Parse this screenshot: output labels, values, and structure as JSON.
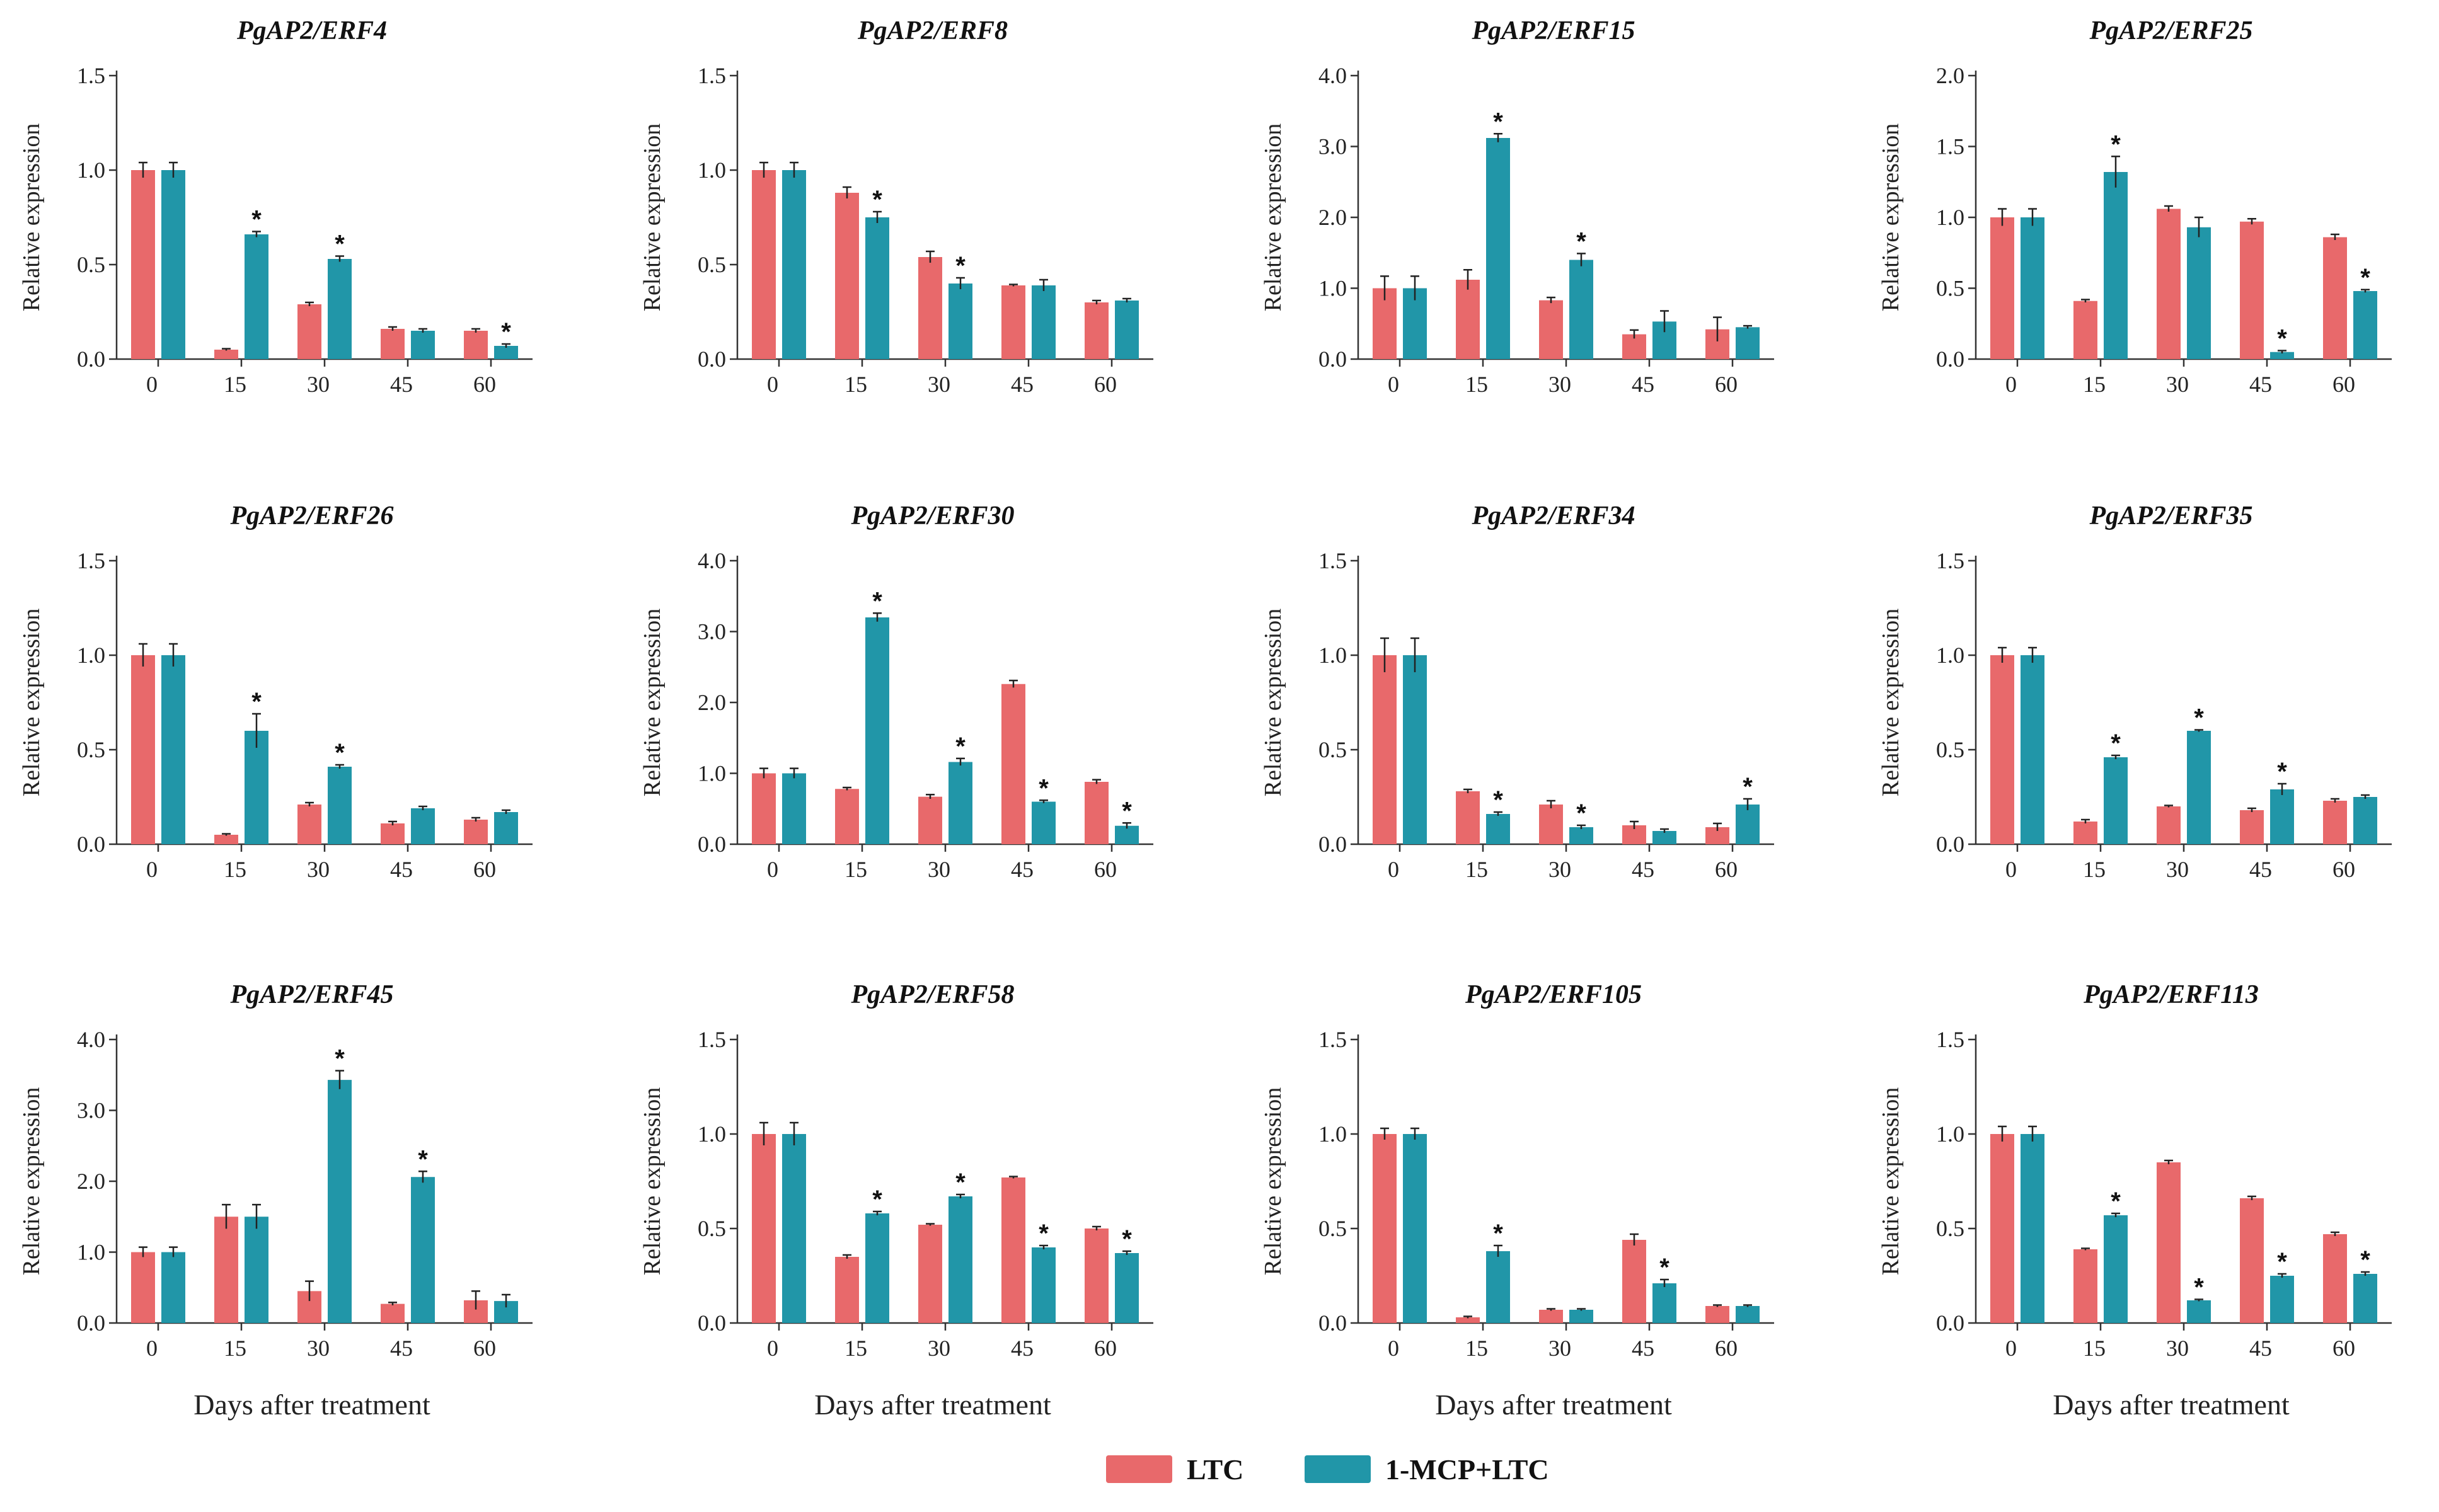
{
  "colors": {
    "ltc": "#E8696B",
    "mcp": "#2196A8",
    "axis": "#333333",
    "error": "#222222"
  },
  "legend": {
    "items": [
      {
        "label": "LTC",
        "color": "#E8696B"
      },
      {
        "label": "1-MCP+LTC",
        "color": "#2196A8"
      }
    ]
  },
  "x_axis_label": "Days after treatment",
  "y_axis_label": "Relative expression",
  "chart_data": [
    {
      "type": "bar",
      "title": "PgAP2/ERF4",
      "categories": [
        "0",
        "15",
        "30",
        "45",
        "60"
      ],
      "ylim": [
        0,
        1.5
      ],
      "yticks": [
        "0.0",
        "0.5",
        "1.0",
        "1.5"
      ],
      "xlabel": "",
      "ylabel": "Relative expression",
      "series": [
        {
          "name": "LTC",
          "values": [
            1.0,
            0.05,
            0.29,
            0.16,
            0.15
          ],
          "errors": [
            0.04,
            0.005,
            0.01,
            0.01,
            0.01
          ]
        },
        {
          "name": "1-MCP+LTC",
          "values": [
            1.0,
            0.66,
            0.53,
            0.15,
            0.07
          ],
          "errors": [
            0.04,
            0.015,
            0.015,
            0.01,
            0.01
          ]
        }
      ],
      "significant": [
        1,
        2,
        4
      ]
    },
    {
      "type": "bar",
      "title": "PgAP2/ERF8",
      "categories": [
        "0",
        "15",
        "30",
        "45",
        "60"
      ],
      "ylim": [
        0,
        1.5
      ],
      "yticks": [
        "0.0",
        "0.5",
        "1.0",
        "1.5"
      ],
      "xlabel": "",
      "ylabel": "Relative expression",
      "series": [
        {
          "name": "LTC",
          "values": [
            1.0,
            0.88,
            0.54,
            0.39,
            0.3
          ],
          "errors": [
            0.04,
            0.03,
            0.03,
            0.005,
            0.01
          ]
        },
        {
          "name": "1-MCP+LTC",
          "values": [
            1.0,
            0.75,
            0.4,
            0.39,
            0.31
          ],
          "errors": [
            0.04,
            0.03,
            0.03,
            0.03,
            0.01
          ]
        }
      ],
      "significant": [
        1,
        2
      ]
    },
    {
      "type": "bar",
      "title": "PgAP2/ERF15",
      "categories": [
        "0",
        "15",
        "30",
        "45",
        "60"
      ],
      "ylim": [
        0,
        4.0
      ],
      "yticks": [
        "0.0",
        "1.0",
        "2.0",
        "3.0",
        "4.0"
      ],
      "xlabel": "",
      "ylabel": "Relative expression",
      "series": [
        {
          "name": "LTC",
          "values": [
            1.0,
            1.12,
            0.83,
            0.35,
            0.42
          ],
          "errors": [
            0.17,
            0.14,
            0.04,
            0.06,
            0.17
          ]
        },
        {
          "name": "1-MCP+LTC",
          "values": [
            1.0,
            3.12,
            1.4,
            0.53,
            0.45
          ],
          "errors": [
            0.17,
            0.06,
            0.09,
            0.15,
            0.02
          ]
        }
      ],
      "significant": [
        1,
        2
      ]
    },
    {
      "type": "bar",
      "title": "PgAP2/ERF25",
      "categories": [
        "0",
        "15",
        "30",
        "45",
        "60"
      ],
      "ylim": [
        0,
        2.0
      ],
      "yticks": [
        "0.0",
        "0.5",
        "1.0",
        "1.5",
        "2.0"
      ],
      "xlabel": "",
      "ylabel": "Relative expression",
      "series": [
        {
          "name": "LTC",
          "values": [
            1.0,
            0.41,
            1.06,
            0.97,
            0.86
          ],
          "errors": [
            0.06,
            0.01,
            0.02,
            0.02,
            0.02
          ]
        },
        {
          "name": "1-MCP+LTC",
          "values": [
            1.0,
            1.32,
            0.93,
            0.05,
            0.48
          ],
          "errors": [
            0.06,
            0.11,
            0.07,
            0.01,
            0.01
          ]
        }
      ],
      "significant": [
        1,
        3,
        4
      ]
    },
    {
      "type": "bar",
      "title": "PgAP2/ERF26",
      "categories": [
        "0",
        "15",
        "30",
        "45",
        "60"
      ],
      "ylim": [
        0,
        1.5
      ],
      "yticks": [
        "0.0",
        "0.5",
        "1.0",
        "1.5"
      ],
      "xlabel": "",
      "ylabel": "Relative expression",
      "series": [
        {
          "name": "LTC",
          "values": [
            1.0,
            0.05,
            0.21,
            0.11,
            0.13
          ],
          "errors": [
            0.06,
            0.005,
            0.01,
            0.01,
            0.01
          ]
        },
        {
          "name": "1-MCP+LTC",
          "values": [
            1.0,
            0.6,
            0.41,
            0.19,
            0.17
          ],
          "errors": [
            0.06,
            0.09,
            0.01,
            0.01,
            0.01
          ]
        }
      ],
      "significant": [
        1,
        2
      ]
    },
    {
      "type": "bar",
      "title": "PgAP2/ERF30",
      "categories": [
        "0",
        "15",
        "30",
        "45",
        "60"
      ],
      "ylim": [
        0,
        4.0
      ],
      "yticks": [
        "0.0",
        "1.0",
        "2.0",
        "3.0",
        "4.0"
      ],
      "xlabel": "",
      "ylabel": "Relative expression",
      "series": [
        {
          "name": "LTC",
          "values": [
            1.0,
            0.78,
            0.67,
            2.26,
            0.88
          ],
          "errors": [
            0.07,
            0.02,
            0.03,
            0.05,
            0.03
          ]
        },
        {
          "name": "1-MCP+LTC",
          "values": [
            1.0,
            3.2,
            1.16,
            0.6,
            0.26
          ],
          "errors": [
            0.07,
            0.06,
            0.05,
            0.02,
            0.04
          ]
        }
      ],
      "significant": [
        1,
        2,
        3,
        4
      ]
    },
    {
      "type": "bar",
      "title": "PgAP2/ERF34",
      "categories": [
        "0",
        "15",
        "30",
        "45",
        "60"
      ],
      "ylim": [
        0,
        1.5
      ],
      "yticks": [
        "0.0",
        "0.5",
        "1.0",
        "1.5"
      ],
      "xlabel": "",
      "ylabel": "Relative expression",
      "series": [
        {
          "name": "LTC",
          "values": [
            1.0,
            0.28,
            0.21,
            0.1,
            0.09
          ],
          "errors": [
            0.09,
            0.01,
            0.02,
            0.02,
            0.02
          ]
        },
        {
          "name": "1-MCP+LTC",
          "values": [
            1.0,
            0.16,
            0.09,
            0.07,
            0.21
          ],
          "errors": [
            0.09,
            0.01,
            0.01,
            0.01,
            0.03
          ]
        }
      ],
      "significant": [
        1,
        2,
        4
      ]
    },
    {
      "type": "bar",
      "title": "PgAP2/ERF35",
      "categories": [
        "0",
        "15",
        "30",
        "45",
        "60"
      ],
      "ylim": [
        0,
        1.5
      ],
      "yticks": [
        "0.0",
        "0.5",
        "1.0",
        "1.5"
      ],
      "xlabel": "",
      "ylabel": "Relative expression",
      "series": [
        {
          "name": "LTC",
          "values": [
            1.0,
            0.12,
            0.2,
            0.18,
            0.23
          ],
          "errors": [
            0.04,
            0.01,
            0.005,
            0.01,
            0.01
          ]
        },
        {
          "name": "1-MCP+LTC",
          "values": [
            1.0,
            0.46,
            0.6,
            0.29,
            0.25
          ],
          "errors": [
            0.04,
            0.01,
            0.005,
            0.03,
            0.01
          ]
        }
      ],
      "significant": [
        1,
        2,
        3
      ]
    },
    {
      "type": "bar",
      "title": "PgAP2/ERF45",
      "categories": [
        "0",
        "15",
        "30",
        "45",
        "60"
      ],
      "ylim": [
        0,
        4.0
      ],
      "yticks": [
        "0.0",
        "1.0",
        "2.0",
        "3.0",
        "4.0"
      ],
      "xlabel": "",
      "ylabel": "Relative expression",
      "series": [
        {
          "name": "LTC",
          "values": [
            1.0,
            1.5,
            0.45,
            0.27,
            0.32
          ],
          "errors": [
            0.07,
            0.17,
            0.14,
            0.02,
            0.13
          ]
        },
        {
          "name": "1-MCP+LTC",
          "values": [
            1.0,
            1.5,
            3.43,
            2.06,
            0.31
          ],
          "errors": [
            0.07,
            0.17,
            0.13,
            0.08,
            0.09
          ]
        }
      ],
      "significant": [
        2,
        3
      ]
    },
    {
      "type": "bar",
      "title": "PgAP2/ERF58",
      "categories": [
        "0",
        "15",
        "30",
        "45",
        "60"
      ],
      "ylim": [
        0,
        1.5
      ],
      "yticks": [
        "0.0",
        "0.5",
        "1.0",
        "1.5"
      ],
      "xlabel": "",
      "ylabel": "Relative expression",
      "series": [
        {
          "name": "LTC",
          "values": [
            1.0,
            0.35,
            0.52,
            0.77,
            0.5
          ],
          "errors": [
            0.06,
            0.01,
            0.005,
            0.005,
            0.01
          ]
        },
        {
          "name": "1-MCP+LTC",
          "values": [
            1.0,
            0.58,
            0.67,
            0.4,
            0.37
          ],
          "errors": [
            0.06,
            0.01,
            0.01,
            0.01,
            0.01
          ]
        }
      ],
      "significant": [
        1,
        2,
        3,
        4
      ]
    },
    {
      "type": "bar",
      "title": "PgAP2/ERF105",
      "categories": [
        "0",
        "15",
        "30",
        "45",
        "60"
      ],
      "ylim": [
        0,
        1.5
      ],
      "yticks": [
        "0.0",
        "0.5",
        "1.0",
        "1.5"
      ],
      "xlabel": "",
      "ylabel": "Relative expression",
      "series": [
        {
          "name": "LTC",
          "values": [
            1.0,
            0.03,
            0.07,
            0.44,
            0.09
          ],
          "errors": [
            0.03,
            0.005,
            0.005,
            0.03,
            0.005
          ]
        },
        {
          "name": "1-MCP+LTC",
          "values": [
            1.0,
            0.38,
            0.07,
            0.21,
            0.09
          ],
          "errors": [
            0.03,
            0.03,
            0.005,
            0.02,
            0.005
          ]
        }
      ],
      "significant": [
        1,
        3
      ]
    },
    {
      "type": "bar",
      "title": "PgAP2/ERF113",
      "categories": [
        "0",
        "15",
        "30",
        "45",
        "60"
      ],
      "ylim": [
        0,
        1.5
      ],
      "yticks": [
        "0.0",
        "0.5",
        "1.0",
        "1.5"
      ],
      "xlabel": "",
      "ylabel": "Relative expression",
      "series": [
        {
          "name": "LTC",
          "values": [
            1.0,
            0.39,
            0.85,
            0.66,
            0.47
          ],
          "errors": [
            0.04,
            0.005,
            0.01,
            0.01,
            0.01
          ]
        },
        {
          "name": "1-MCP+LTC",
          "values": [
            1.0,
            0.57,
            0.12,
            0.25,
            0.26
          ],
          "errors": [
            0.04,
            0.01,
            0.005,
            0.01,
            0.01
          ]
        }
      ],
      "significant": [
        1,
        2,
        3,
        4
      ]
    }
  ]
}
